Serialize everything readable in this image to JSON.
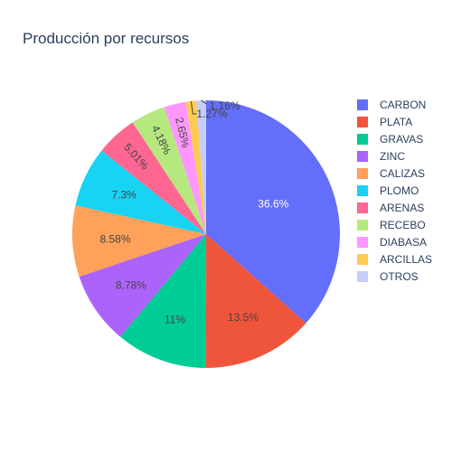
{
  "chart_data": {
    "type": "pie",
    "title": "Producción por recursos",
    "categories": [
      "CARBON",
      "PLATA",
      "GRAVAS",
      "ZINC",
      "CALIZAS",
      "PLOMO",
      "ARENAS",
      "RECEBO",
      "DIABASA",
      "ARCILLAS",
      "OTROS"
    ],
    "values": [
      36.6,
      13.5,
      11,
      8.78,
      8.58,
      7.3,
      5.01,
      4.18,
      2.65,
      1.27,
      1.16
    ],
    "labels": [
      "36.6%",
      "13.5%",
      "11%",
      "8.78%",
      "8.58%",
      "7.3%",
      "5.01%",
      "4.18%",
      "2.65%",
      "1.27%",
      "1.16%"
    ],
    "colors": [
      "#636efa",
      "#EF553B",
      "#00cc96",
      "#ab63fa",
      "#FFA15A",
      "#19d3f3",
      "#FF6692",
      "#B6E880",
      "#FF97FF",
      "#FECB52",
      "#c6cdf7"
    ],
    "legend_position": "right"
  }
}
